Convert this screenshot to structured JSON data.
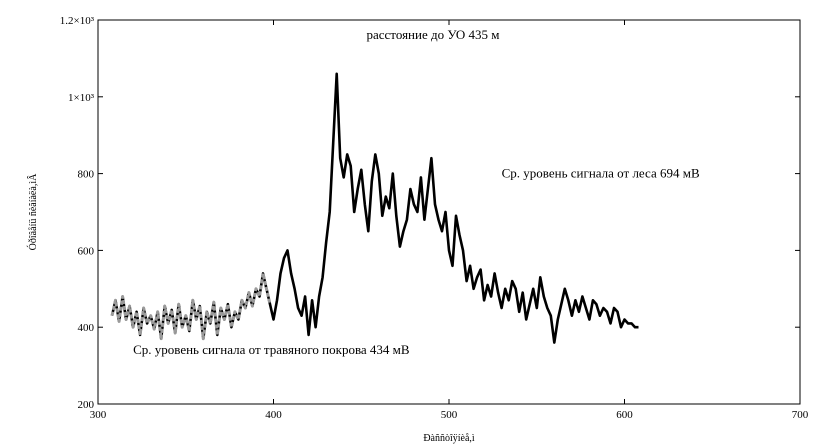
{
  "chart_data": {
    "type": "line",
    "xlabel": "Ðàññòîÿíèå,ì",
    "ylabel": "Óðîâåíü ñèãíàëà,ìÂ",
    "xlim": [
      300,
      700
    ],
    "ylim": [
      200,
      1200
    ],
    "x_ticks": [
      {
        "value": 300,
        "label": "300"
      },
      {
        "value": 400,
        "label": "400"
      },
      {
        "value": 500,
        "label": "500"
      },
      {
        "value": 600,
        "label": "600"
      },
      {
        "value": 700,
        "label": "700"
      }
    ],
    "y_ticks": [
      {
        "value": 200,
        "label": "200"
      },
      {
        "value": 400,
        "label": "400"
      },
      {
        "value": 600,
        "label": "600"
      },
      {
        "value": 800,
        "label": "800"
      },
      {
        "value": 1000,
        "label": "1×10³"
      },
      {
        "value": 1200,
        "label": "1.2×10³"
      }
    ],
    "grid": false,
    "annotations": [
      {
        "text": "расстояние до УО 435 м",
        "x": 453,
        "y": 1150
      },
      {
        "text": "Ср. уровень сигнала от леса 694 мВ",
        "x": 530,
        "y": 790
      },
      {
        "text": "Ср. уровень сигнала от травяного покрова 434 мВ",
        "x": 320,
        "y": 330
      }
    ],
    "series": [
      {
        "style": "solid",
        "color": "#000000",
        "x": [
          308,
          310,
          312,
          314,
          316,
          318,
          320,
          322,
          324,
          326,
          328,
          330,
          332,
          334,
          336,
          338,
          340,
          342,
          344,
          346,
          348,
          350,
          352,
          354,
          356,
          358,
          360,
          362,
          364,
          366,
          368,
          370,
          372,
          374,
          376,
          378,
          380,
          382,
          384,
          386,
          388,
          390,
          392,
          394,
          396,
          398,
          400,
          402,
          404,
          406,
          408,
          410,
          412,
          414,
          416,
          418,
          420,
          422,
          424,
          426,
          428,
          430,
          432,
          434,
          436,
          438,
          440,
          442,
          444,
          446,
          448,
          450,
          452,
          454,
          456,
          458,
          460,
          462,
          464,
          466,
          468,
          470,
          472,
          474,
          476,
          478,
          480,
          482,
          484,
          486,
          488,
          490,
          492,
          494,
          496,
          498,
          500,
          502,
          504,
          506,
          508,
          510,
          512,
          514,
          516,
          518,
          520,
          522,
          524,
          526,
          528,
          530,
          532,
          534,
          536,
          538,
          540,
          542,
          544,
          546,
          548,
          550,
          552,
          554,
          556,
          558,
          560,
          562,
          564,
          566,
          568,
          570,
          572,
          574,
          576,
          578,
          580,
          582,
          584,
          586,
          588,
          590,
          592,
          594,
          596,
          598,
          600,
          602,
          604,
          606,
          608
        ],
        "values": [
          430,
          470,
          415,
          480,
          420,
          455,
          400,
          440,
          380,
          450,
          410,
          430,
          395,
          440,
          370,
          455,
          410,
          445,
          385,
          460,
          400,
          430,
          390,
          470,
          420,
          455,
          370,
          440,
          410,
          465,
          380,
          450,
          420,
          460,
          400,
          440,
          420,
          470,
          450,
          490,
          455,
          500,
          480,
          540,
          500,
          460,
          420,
          470,
          540,
          580,
          600,
          540,
          500,
          450,
          430,
          480,
          380,
          470,
          400,
          480,
          530,
          620,
          700,
          880,
          1060,
          840,
          790,
          850,
          820,
          700,
          760,
          810,
          720,
          650,
          780,
          850,
          800,
          690,
          740,
          710,
          800,
          690,
          610,
          650,
          680,
          760,
          720,
          700,
          790,
          680,
          760,
          840,
          720,
          680,
          650,
          700,
          600,
          560,
          690,
          640,
          600,
          520,
          560,
          500,
          530,
          550,
          470,
          510,
          480,
          540,
          490,
          450,
          500,
          470,
          520,
          500,
          440,
          490,
          420,
          460,
          500,
          450,
          530,
          480,
          450,
          430,
          360,
          420,
          460,
          500,
          470,
          430,
          470,
          440,
          480,
          450,
          420,
          470,
          460,
          430,
          450,
          440,
          410,
          450,
          440,
          400,
          420,
          410,
          410,
          400,
          400
        ]
      },
      {
        "style": "dashed",
        "color": "#9a9a9a",
        "x": [
          308,
          310,
          312,
          314,
          316,
          318,
          320,
          322,
          324,
          326,
          328,
          330,
          332,
          334,
          336,
          338,
          340,
          342,
          344,
          346,
          348,
          350,
          352,
          354,
          356,
          358,
          360,
          362,
          364,
          366,
          368,
          370,
          372,
          374,
          376,
          378,
          380,
          382,
          384,
          386,
          388,
          390,
          392,
          394,
          396,
          398
        ],
        "values": [
          430,
          470,
          415,
          480,
          420,
          455,
          400,
          440,
          380,
          450,
          410,
          430,
          395,
          440,
          370,
          455,
          410,
          445,
          385,
          460,
          400,
          430,
          390,
          470,
          420,
          455,
          370,
          440,
          410,
          465,
          380,
          450,
          420,
          460,
          400,
          440,
          420,
          470,
          450,
          490,
          455,
          500,
          480,
          540,
          500,
          460
        ]
      }
    ]
  }
}
